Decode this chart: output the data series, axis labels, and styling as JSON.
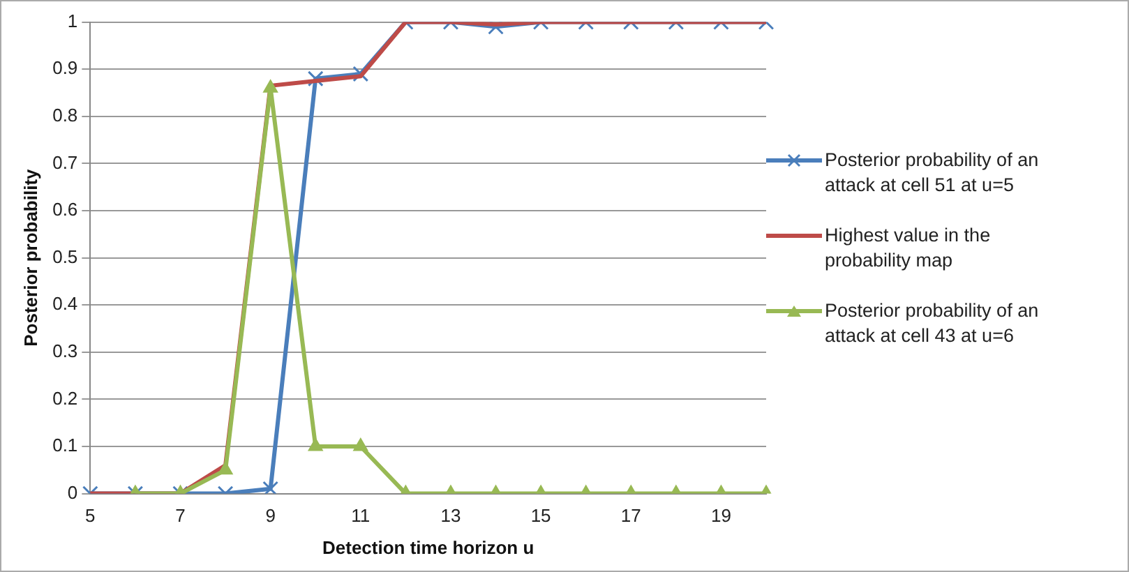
{
  "chart_data": {
    "type": "line",
    "xlabel": "Detection time horizon u",
    "ylabel": "Posterior probability",
    "categories": [
      "5",
      null,
      "7",
      null,
      "9",
      null,
      "11",
      null,
      "13",
      null,
      "15",
      null,
      "17",
      null,
      "19",
      null
    ],
    "series": [
      {
        "name": "Posterior probability of an attack at cell 51 at u=5",
        "color": "#4a7ebb",
        "marker": "cross",
        "values": [
          0,
          0,
          0,
          0,
          0.01,
          0.88,
          0.89,
          1,
          1,
          0.99,
          1,
          1,
          1,
          1,
          1,
          1
        ]
      },
      {
        "name": "Highest value in the probability map",
        "color": "#be4b48",
        "marker": "none",
        "values": [
          0,
          0,
          0,
          0.06,
          0.865,
          0.875,
          0.885,
          1,
          1,
          0.995,
          1,
          1,
          1,
          1,
          1,
          1
        ]
      },
      {
        "name": "Posterior probability of an attack at cell 43 at u=6",
        "color": "#98b954",
        "marker": "triangle",
        "values": [
          null,
          0,
          0,
          0.05,
          0.86,
          0.1,
          0.1,
          0,
          0,
          0,
          0,
          0,
          0,
          0,
          0,
          0
        ]
      }
    ],
    "ylim": [
      0,
      1
    ],
    "yticks": [
      0,
      0.1,
      0.2,
      0.3,
      0.4,
      0.5,
      0.6,
      0.7,
      0.8,
      0.9,
      1
    ],
    "grid": "y",
    "legend": "right"
  }
}
